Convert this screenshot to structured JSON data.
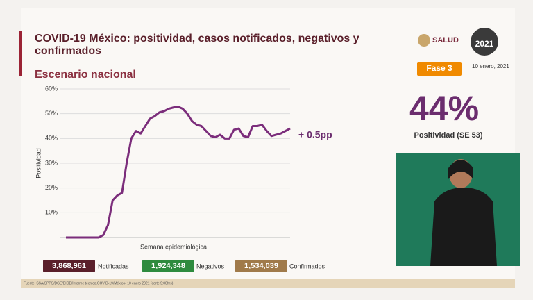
{
  "header": {
    "title": "COVID-19 México: positividad, casos notificados, negativos y confirmados",
    "subtitle": "Escenario nacional",
    "logo_text": "SALUD",
    "year_badge": "2021",
    "phase": "Fase 3",
    "date": "10 enero, 2021"
  },
  "chart_data": {
    "type": "line",
    "y_label": "Positividad",
    "x_label": "Semana epidemiológica",
    "annotation": "+ 0.5pp",
    "categories": [
      null,
      null,
      null,
      null,
      null,
      null,
      null,
      null,
      null,
      null,
      null,
      null,
      null,
      null,
      null,
      null,
      null,
      null,
      null,
      null,
      null,
      null,
      null,
      null,
      null,
      null,
      null,
      null,
      null,
      null,
      null,
      null,
      null,
      null,
      null,
      null,
      null,
      null,
      null,
      null,
      null,
      null,
      null,
      null,
      null,
      null,
      null,
      null,
      null
    ],
    "series": [
      {
        "name": "Positividad",
        "color": "#7b2d7b",
        "values": [
          0,
          0,
          0,
          0,
          0,
          0,
          0,
          0,
          1,
          5,
          15,
          17,
          18,
          30,
          40,
          43,
          42,
          45,
          48,
          49,
          50.5,
          51,
          52,
          52.5,
          52.8,
          52,
          50,
          47,
          45.5,
          45,
          43,
          41,
          40.5,
          41.5,
          40,
          40,
          43.5,
          44,
          41,
          40.5,
          45,
          45,
          45.5,
          43,
          41,
          41.5,
          42,
          43,
          44
        ]
      }
    ],
    "ylim": [
      0,
      60
    ],
    "yticks": [
      {
        "value": 10,
        "label": "10%"
      },
      {
        "value": 20,
        "label": "20%"
      },
      {
        "value": 30,
        "label": "30%"
      },
      {
        "value": 40,
        "label": "40%"
      },
      {
        "value": 50,
        "label": "50%"
      },
      {
        "value": 60,
        "label": "60%"
      }
    ],
    "grid": true
  },
  "kpi": {
    "value": "44%",
    "label": "Positividad (SE 53)"
  },
  "stats": [
    {
      "value": "3,868,961",
      "label": "Notificadas",
      "color": "#5a1f2a"
    },
    {
      "value": "1,924,348",
      "label": "Negativos",
      "color": "#2e8b3e"
    },
    {
      "value": "1,534,039",
      "label": "Confirmados",
      "color": "#a07a4a"
    }
  ],
  "footer": "Fuente: SSA/SPPS/DGE/DIOE/Informe técnico.COVID-19/México- 10 enero 2021 (corte 9:00hrs)"
}
